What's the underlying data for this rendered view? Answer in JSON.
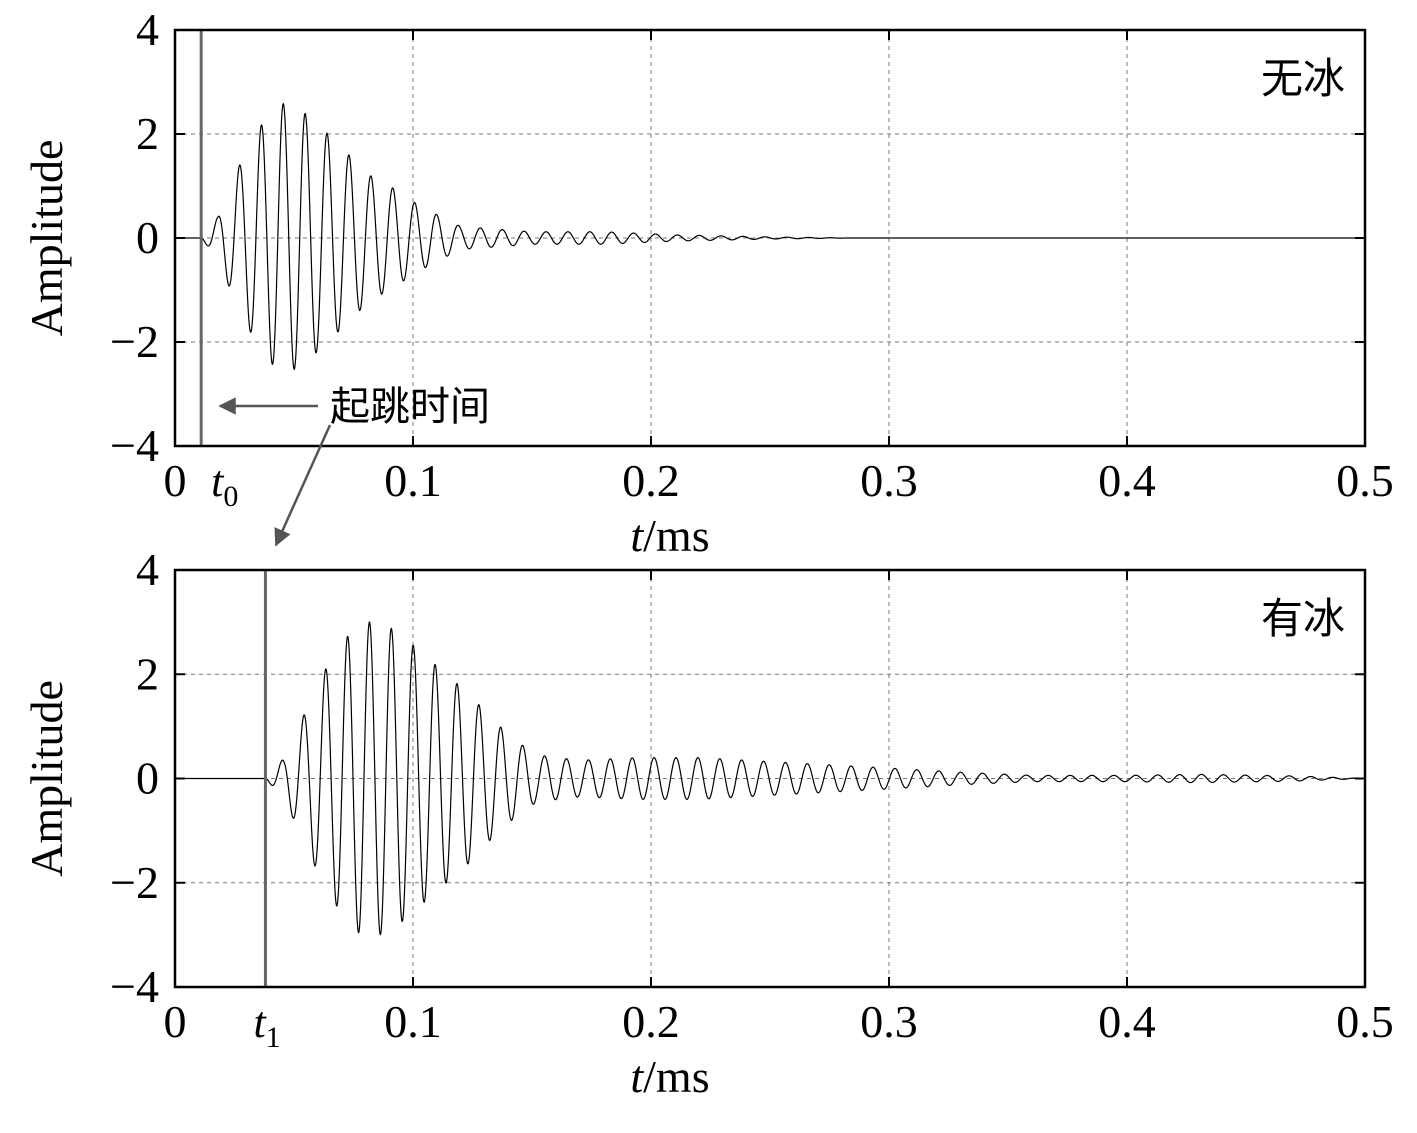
{
  "chart_data": [
    {
      "type": "line",
      "panel_label": "无冰",
      "xlabel_italic": "t",
      "xlabel_unit": "/ms",
      "ylabel": "Amplitude",
      "xlim": [
        0,
        0.5
      ],
      "ylim": [
        -4,
        4
      ],
      "xticks": [
        "0",
        "0.1",
        "0.2",
        "0.3",
        "0.4",
        "0.5"
      ],
      "yticks": [
        "4",
        "2",
        "0",
        "−2",
        "−4"
      ],
      "grid": true,
      "marker": {
        "symbol": "t",
        "subscript": "0",
        "x": 0.011
      },
      "signal": {
        "onset": 0.011,
        "period": 0.0092,
        "envelope": [
          [
            0.011,
            0.0
          ],
          [
            0.018,
            0.4
          ],
          [
            0.026,
            1.3
          ],
          [
            0.035,
            2.1
          ],
          [
            0.044,
            2.6
          ],
          [
            0.052,
            2.5
          ],
          [
            0.062,
            2.1
          ],
          [
            0.073,
            1.6
          ],
          [
            0.082,
            1.2
          ],
          [
            0.092,
            0.95
          ],
          [
            0.1,
            0.7
          ],
          [
            0.11,
            0.45
          ],
          [
            0.12,
            0.22
          ],
          [
            0.15,
            0.12
          ],
          [
            0.18,
            0.12
          ],
          [
            0.21,
            0.06
          ],
          [
            0.25,
            0.02
          ],
          [
            0.285,
            0.0
          ],
          [
            0.5,
            0.0
          ]
        ]
      }
    },
    {
      "type": "line",
      "panel_label": "有冰",
      "xlabel_italic": "t",
      "xlabel_unit": "/ms",
      "ylabel": "Amplitude",
      "xlim": [
        0,
        0.5
      ],
      "ylim": [
        -4,
        4
      ],
      "xticks": [
        "0",
        "0.1",
        "0.2",
        "0.3",
        "0.4",
        "0.5"
      ],
      "yticks": [
        "4",
        "2",
        "0",
        "−2",
        "−4"
      ],
      "grid": true,
      "marker": {
        "symbol": "t",
        "subscript": "1",
        "x": 0.038
      },
      "signal": {
        "onset": 0.038,
        "period": 0.0092,
        "envelope": [
          [
            0.038,
            0.0
          ],
          [
            0.046,
            0.4
          ],
          [
            0.054,
            1.2
          ],
          [
            0.062,
            2.0
          ],
          [
            0.07,
            2.6
          ],
          [
            0.078,
            3.0
          ],
          [
            0.086,
            3.0
          ],
          [
            0.094,
            2.8
          ],
          [
            0.104,
            2.4
          ],
          [
            0.114,
            2.0
          ],
          [
            0.124,
            1.6
          ],
          [
            0.134,
            1.1
          ],
          [
            0.144,
            0.7
          ],
          [
            0.152,
            0.45
          ],
          [
            0.17,
            0.35
          ],
          [
            0.195,
            0.4
          ],
          [
            0.22,
            0.4
          ],
          [
            0.26,
            0.3
          ],
          [
            0.3,
            0.2
          ],
          [
            0.33,
            0.12
          ],
          [
            0.36,
            0.06
          ],
          [
            0.4,
            0.06
          ],
          [
            0.43,
            0.08
          ],
          [
            0.47,
            0.05
          ],
          [
            0.5,
            0.0
          ]
        ]
      }
    }
  ],
  "annotation": {
    "text": "起跳时间"
  }
}
